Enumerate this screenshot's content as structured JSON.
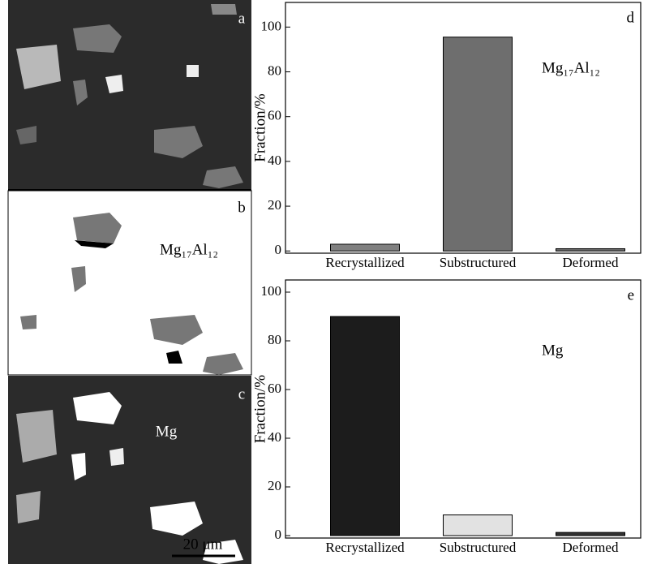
{
  "chart_data": [
    {
      "type": "bar",
      "panel": "d",
      "annotation": "Mg₁₇Al₁₂",
      "ylabel": "Fraction/%",
      "categories": [
        "Recrystallized",
        "Substructured",
        "Deformed"
      ],
      "values": [
        3,
        95.5,
        1
      ],
      "colors": [
        "#808080",
        "#6e6e6e",
        "#696969"
      ],
      "ylim": [
        -1,
        111
      ],
      "yticks": [
        0,
        20,
        40,
        60,
        80,
        100
      ]
    },
    {
      "type": "bar",
      "panel": "e",
      "annotation": "Mg",
      "ylabel": "Fraction/%",
      "categories": [
        "Recrystallized",
        "Substructured",
        "Deformed"
      ],
      "values": [
        90,
        8.5,
        1.3
      ],
      "colors": [
        "#1c1c1c",
        "#e2e2e2",
        "#333333"
      ],
      "ylim": [
        -1,
        105
      ],
      "yticks": [
        0,
        20,
        40,
        60,
        80,
        100
      ]
    }
  ],
  "micrographs": [
    {
      "panel": "a"
    },
    {
      "panel": "b",
      "annotation": "Mg₁₇Al₁₂"
    },
    {
      "panel": "c",
      "annotation": "Mg",
      "scale_bar": "20 μm"
    }
  ]
}
